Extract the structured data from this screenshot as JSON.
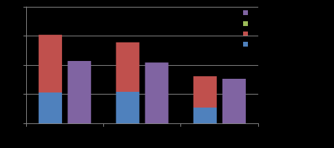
{
  "chart_data": {
    "type": "bar",
    "categories": [
      null,
      null,
      null
    ],
    "series": [
      {
        "color": "#4f81bd",
        "values": [
          1.06,
          1.08,
          0.54
        ],
        "stacked": true
      },
      {
        "color": "#c0504d",
        "values": [
          1.98,
          1.7,
          1.08
        ],
        "stacked": true
      },
      {
        "color": "#9bbb59",
        "values": [
          null,
          null,
          null
        ],
        "stacked": true
      },
      {
        "color": "#8064a2",
        "values": [
          2.14,
          2.09,
          1.53
        ],
        "stacked": false
      }
    ],
    "ylim": [
      0,
      4
    ],
    "yticks": [
      0,
      1,
      2,
      3,
      4
    ],
    "grid": true,
    "legend": "top-right",
    "tick_labels": false
  }
}
